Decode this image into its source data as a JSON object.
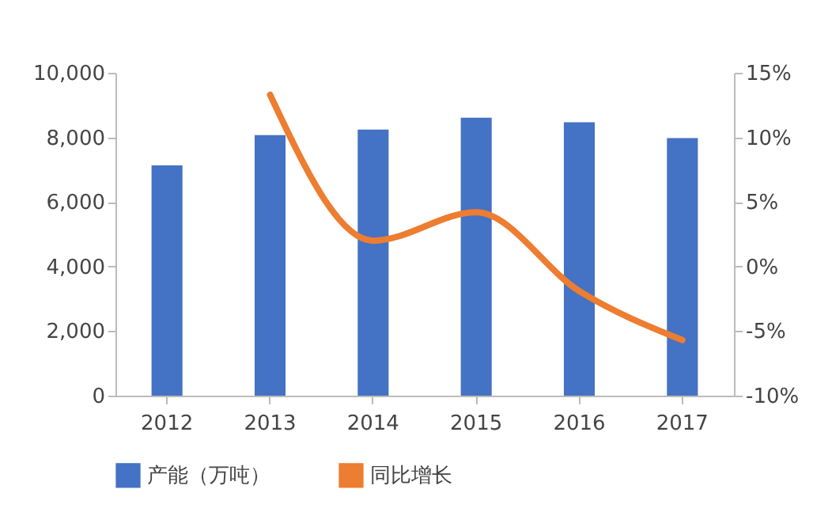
{
  "chart_data": {
    "type": "bar",
    "categories": [
      "2012",
      "2013",
      "2014",
      "2015",
      "2016",
      "2017"
    ],
    "series": [
      {
        "name": "产能（万吨）",
        "color": "#4472c4",
        "values": [
          7130,
          8070,
          8240,
          8610,
          8470,
          7980
        ]
      },
      {
        "name": "同比增长",
        "type": "line",
        "axis": "y2",
        "color": "#ed7d31",
        "values": [
          null,
          13.3,
          2.0,
          4.2,
          -1.9,
          -5.7
        ]
      }
    ],
    "ylim": [
      0,
      10000
    ],
    "yticks": [
      0,
      {
        "value": 2000,
        "label": "2,000"
      },
      {
        "value": 4000,
        "label": "4,000"
      },
      {
        "value": 6000,
        "label": "6,000"
      },
      {
        "value": 8000,
        "label": "8,000"
      },
      {
        "value": 10000,
        "label": "10,000"
      }
    ],
    "y2lim": [
      -10,
      15
    ],
    "y2ticks": [
      {
        "value": -10,
        "label": "-10%"
      },
      {
        "value": -5,
        "label": "-5%"
      },
      {
        "value": 0,
        "label": "0%"
      },
      {
        "value": 5,
        "label": "5%"
      },
      {
        "value": 10,
        "label": "10%"
      },
      {
        "value": 15,
        "label": "15%"
      }
    ],
    "legend": "bottom"
  }
}
